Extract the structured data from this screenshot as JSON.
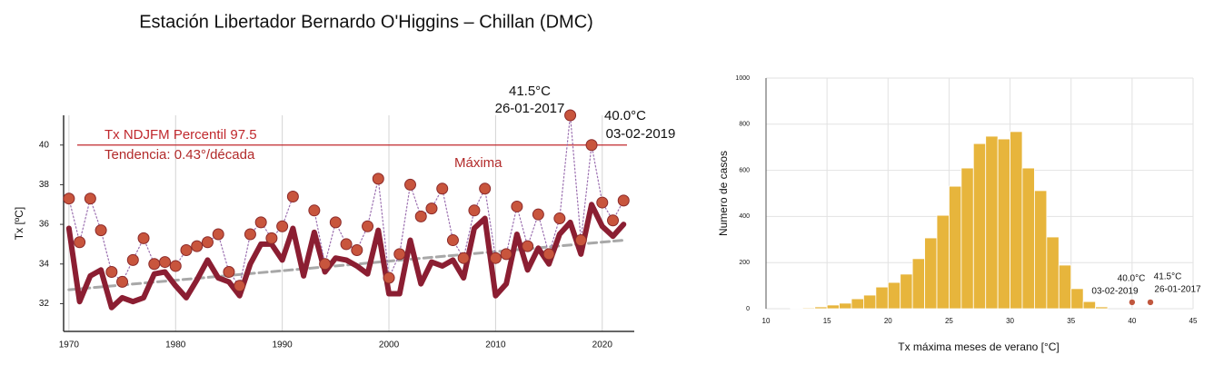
{
  "chart_data": [
    {
      "type": "line",
      "title": "Estación Libertador Bernardo O'Higgins – Chillan (DMC)",
      "ylabel": "Tx [ºC]",
      "x": [
        1970,
        1971,
        1972,
        1973,
        1974,
        1975,
        1976,
        1977,
        1978,
        1979,
        1980,
        1981,
        1982,
        1983,
        1984,
        1985,
        1986,
        1987,
        1988,
        1989,
        1990,
        1991,
        1992,
        1993,
        1994,
        1995,
        1996,
        1997,
        1998,
        1999,
        2000,
        2001,
        2002,
        2003,
        2004,
        2005,
        2006,
        2007,
        2008,
        2009,
        2010,
        2011,
        2012,
        2013,
        2014,
        2015,
        2016,
        2017,
        2018,
        2019,
        2020,
        2021,
        2022
      ],
      "series": [
        {
          "name": "Tendencia: 0.43°/década",
          "color": "#a8a8a8",
          "linestyle": "dashed",
          "x": [
            1970,
            2022
          ],
          "values": [
            32.7,
            35.2
          ]
        },
        {
          "color": "#8b1e32",
          "linestyle": "thick",
          "values": [
            35.8,
            32.1,
            33.4,
            33.7,
            31.8,
            32.3,
            32.1,
            32.3,
            33.5,
            33.6,
            32.9,
            32.3,
            33.2,
            34.2,
            33.3,
            33.1,
            32.4,
            34.0,
            35.0,
            35.0,
            34.2,
            35.8,
            33.4,
            35.6,
            33.6,
            34.3,
            34.2,
            33.9,
            33.5,
            35.7,
            32.5,
            32.5,
            35.2,
            33.0,
            34.1,
            33.9,
            34.2,
            33.3,
            35.8,
            36.3,
            32.4,
            33.0,
            35.5,
            33.7,
            34.8,
            34.0,
            35.5,
            36.1,
            34.5,
            37.0,
            35.9,
            35.4,
            36.0
          ]
        },
        {
          "name": "Máxima",
          "color": "#9b6fb0",
          "linestyle": "dotted",
          "marker": "circle",
          "marker_color": "#c8553d",
          "values": [
            37.3,
            35.1,
            37.3,
            35.7,
            33.6,
            33.1,
            34.2,
            35.3,
            34.0,
            34.1,
            33.9,
            34.7,
            34.9,
            35.1,
            35.5,
            33.6,
            32.9,
            35.5,
            36.1,
            35.3,
            35.9,
            37.4,
            null,
            36.7,
            34.0,
            36.1,
            35.0,
            34.7,
            35.9,
            38.3,
            33.3,
            34.5,
            38.0,
            36.4,
            36.8,
            37.8,
            35.2,
            34.3,
            36.7,
            37.8,
            34.3,
            34.5,
            36.9,
            34.9,
            36.5,
            34.5,
            36.3,
            41.5,
            35.2,
            40.0,
            37.1,
            36.2,
            37.2
          ]
        }
      ],
      "reference": {
        "name": "Tx NDJFM Percentil 97.5",
        "value": 40,
        "color": "#c0282d"
      },
      "annotations": [
        {
          "lines": [
            "41.5°C",
            "26-01-2017"
          ]
        },
        {
          "lines": [
            "40.0°C",
            "03-02-2019"
          ]
        }
      ],
      "xlim": [
        1969.5,
        2023
      ],
      "xticks": [
        1970,
        1980,
        1990,
        2000,
        2010,
        2020
      ],
      "ylim": [
        30.6,
        41.5
      ],
      "yticks": [
        32,
        34,
        36,
        38,
        40
      ],
      "grid": true
    },
    {
      "type": "histogram",
      "xlabel": "Tx máxima meses de verano [°C]",
      "ylabel": "Numero de casos",
      "bins": [
        12,
        13,
        14,
        15,
        16,
        17,
        18,
        19,
        20,
        21,
        22,
        23,
        24,
        25,
        26,
        27,
        28,
        29,
        30,
        31,
        32,
        33,
        34,
        35,
        36,
        37,
        38
      ],
      "values": [
        1,
        4,
        8,
        16,
        24,
        43,
        59,
        94,
        114,
        150,
        217,
        307,
        405,
        531,
        610,
        716,
        748,
        736,
        768,
        610,
        512,
        311,
        189,
        87,
        31,
        8
      ],
      "color": "#e7b53c",
      "points": {
        "x": [
          40.0,
          41.5
        ],
        "values": [
          28,
          28
        ],
        "color": "#c0573e"
      },
      "annotations": [
        {
          "lines": [
            "40.0°C",
            "03-02-2019"
          ]
        },
        {
          "lines": [
            "41.5°C",
            "26-01-2017"
          ]
        }
      ],
      "xlim": [
        10,
        45
      ],
      "xticks": [
        10,
        15,
        20,
        25,
        30,
        35,
        40,
        45
      ],
      "ylim": [
        0,
        1000
      ],
      "yticks": [
        0,
        200,
        400,
        600,
        800,
        1000
      ],
      "grid": true
    }
  ]
}
